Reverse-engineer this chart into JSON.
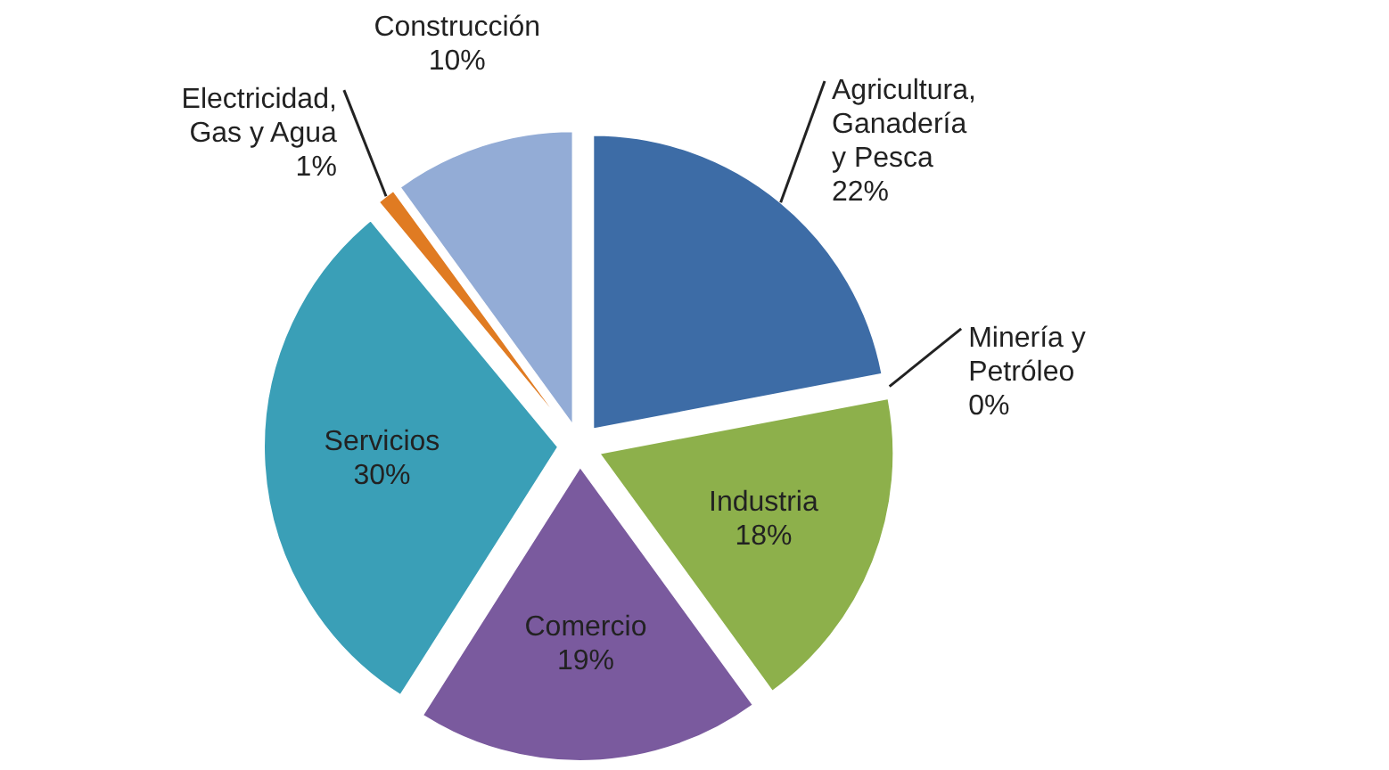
{
  "chart_data": {
    "type": "pie",
    "categories": [
      "Agricultura, Ganadería y Pesca",
      "Minería y Petróleo",
      "Industria",
      "Comercio",
      "Servicios",
      "Electricidad, Gas y Agua",
      "Construcción"
    ],
    "values": [
      22,
      0,
      18,
      19,
      30,
      1,
      10
    ],
    "value_labels": [
      "22%",
      "0%",
      "18%",
      "19%",
      "30%",
      "1%",
      "10%"
    ],
    "colors": [
      "#3d6ca6",
      "#c0504d",
      "#8db04b",
      "#7a5a9e",
      "#3a9fb7",
      "#e07b22",
      "#93acd6"
    ]
  }
}
